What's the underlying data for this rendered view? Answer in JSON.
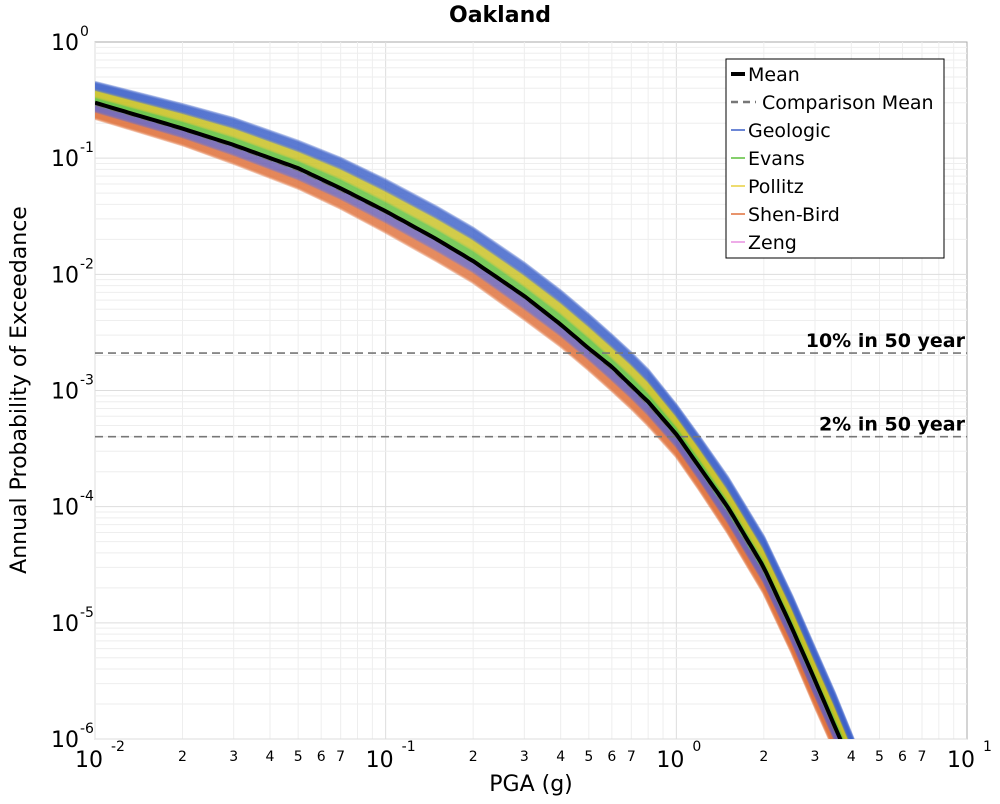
{
  "chart_data": {
    "type": "line",
    "title": "Oakland",
    "xlabel": "PGA (g)",
    "ylabel": "Annual Probability of Exceedance",
    "xscale": "log",
    "yscale": "log",
    "xlim": [
      0.01,
      10
    ],
    "ylim": [
      1e-06,
      1
    ],
    "grid": true,
    "legend_position": "top-right",
    "x_tick_labels": [
      {
        "x": 0.01,
        "base": "10",
        "exp": "-2"
      },
      {
        "x": 0.1,
        "base": "10",
        "exp": "-1"
      },
      {
        "x": 1,
        "base": "10",
        "exp": "0"
      },
      {
        "x": 10,
        "base": "10",
        "exp": "1"
      }
    ],
    "x_minor_labels": [
      {
        "x": 0.02,
        "label": "2"
      },
      {
        "x": 0.03,
        "label": "3"
      },
      {
        "x": 0.04,
        "label": "4"
      },
      {
        "x": 0.05,
        "label": "5"
      },
      {
        "x": 0.06,
        "label": "6"
      },
      {
        "x": 0.07,
        "label": "7"
      },
      {
        "x": 0.2,
        "label": "2"
      },
      {
        "x": 0.3,
        "label": "3"
      },
      {
        "x": 0.4,
        "label": "4"
      },
      {
        "x": 0.5,
        "label": "5"
      },
      {
        "x": 0.6,
        "label": "6"
      },
      {
        "x": 0.7,
        "label": "7"
      },
      {
        "x": 2,
        "label": "2"
      },
      {
        "x": 3,
        "label": "3"
      },
      {
        "x": 4,
        "label": "4"
      },
      {
        "x": 5,
        "label": "5"
      },
      {
        "x": 6,
        "label": "6"
      },
      {
        "x": 7,
        "label": "7"
      }
    ],
    "y_tick_labels": [
      {
        "y": 1,
        "base": "10",
        "exp": "0"
      },
      {
        "y": 0.1,
        "base": "10",
        "exp": "-1"
      },
      {
        "y": 0.01,
        "base": "10",
        "exp": "-2"
      },
      {
        "y": 0.001,
        "base": "10",
        "exp": "-3"
      },
      {
        "y": 0.0001,
        "base": "10",
        "exp": "-4"
      },
      {
        "y": 1e-05,
        "base": "10",
        "exp": "-5"
      },
      {
        "y": 1e-06,
        "base": "10",
        "exp": "-6"
      }
    ],
    "series": [
      {
        "name": "Mean",
        "color": "#000000",
        "style": "solid",
        "x": [
          0.01,
          0.02,
          0.03,
          0.05,
          0.07,
          0.1,
          0.15,
          0.2,
          0.3,
          0.4,
          0.5,
          0.6,
          0.7,
          0.8,
          1.0,
          1.2,
          1.5,
          2.0,
          2.5,
          3.0,
          3.5,
          4.0
        ],
        "y": [
          0.3,
          0.18,
          0.13,
          0.082,
          0.055,
          0.035,
          0.02,
          0.013,
          0.0065,
          0.0037,
          0.0023,
          0.0016,
          0.0011,
          0.0008,
          0.00042,
          0.00022,
          0.0001,
          3e-05,
          9e-06,
          3.2e-06,
          1.3e-06,
          6e-07
        ]
      },
      {
        "name": "Comparison Mean",
        "color": "#777777",
        "style": "dashed",
        "x": [
          0.01,
          0.02,
          0.03,
          0.05,
          0.07,
          0.1,
          0.15,
          0.2,
          0.3,
          0.4,
          0.5,
          0.6,
          0.7,
          0.8,
          1.0,
          1.2,
          1.5,
          2.0,
          2.5,
          3.0,
          3.5,
          4.0
        ],
        "y": [
          0.29,
          0.175,
          0.126,
          0.079,
          0.053,
          0.034,
          0.0195,
          0.0127,
          0.0063,
          0.0036,
          0.00223,
          0.00153,
          0.00105,
          0.00076,
          0.0004,
          0.00021,
          9.4e-05,
          2.8e-05,
          8.3e-06,
          3e-06,
          1.2e-06,
          5.5e-07
        ]
      },
      {
        "name": "Geologic",
        "color": "#3a5fc8"
      },
      {
        "name": "Evans",
        "color": "#5cbf3a"
      },
      {
        "name": "Pollitz",
        "color": "#e8d040"
      },
      {
        "name": "Shen-Bird",
        "color": "#e0703a"
      },
      {
        "name": "Zeng",
        "color": "#e890e0"
      }
    ],
    "band": {
      "x": [
        0.01,
        0.02,
        0.03,
        0.05,
        0.07,
        0.1,
        0.15,
        0.2,
        0.3,
        0.4,
        0.5,
        0.6,
        0.7,
        0.8,
        1.0,
        1.2,
        1.5,
        2.0,
        2.5,
        3.0,
        3.5,
        4.0,
        4.3
      ],
      "upper": [
        0.45,
        0.29,
        0.22,
        0.14,
        0.1,
        0.065,
        0.038,
        0.025,
        0.0125,
        0.0072,
        0.0045,
        0.003,
        0.0021,
        0.0015,
        0.00075,
        0.0004,
        0.00018,
        5.5e-05,
        1.7e-05,
        6e-06,
        2.5e-06,
        1.1e-06,
        7e-07
      ],
      "lower": [
        0.22,
        0.13,
        0.09,
        0.055,
        0.037,
        0.023,
        0.013,
        0.0085,
        0.0041,
        0.0024,
        0.0015,
        0.001,
        0.0007,
        0.0005,
        0.00027,
        0.00014,
        6e-05,
        1.8e-05,
        5.5e-06,
        1.9e-06,
        8e-07,
        4e-07,
        2e-07
      ],
      "fill_colors": [
        "#e0703a",
        "#6a5cb0",
        "#5cbf3a",
        "#c8c020",
        "#3a5fc8"
      ]
    },
    "reference_lines": [
      {
        "label": "10% in 50 year",
        "y": 0.0021
      },
      {
        "label": "2% in 50 year",
        "y": 0.0004
      }
    ]
  }
}
